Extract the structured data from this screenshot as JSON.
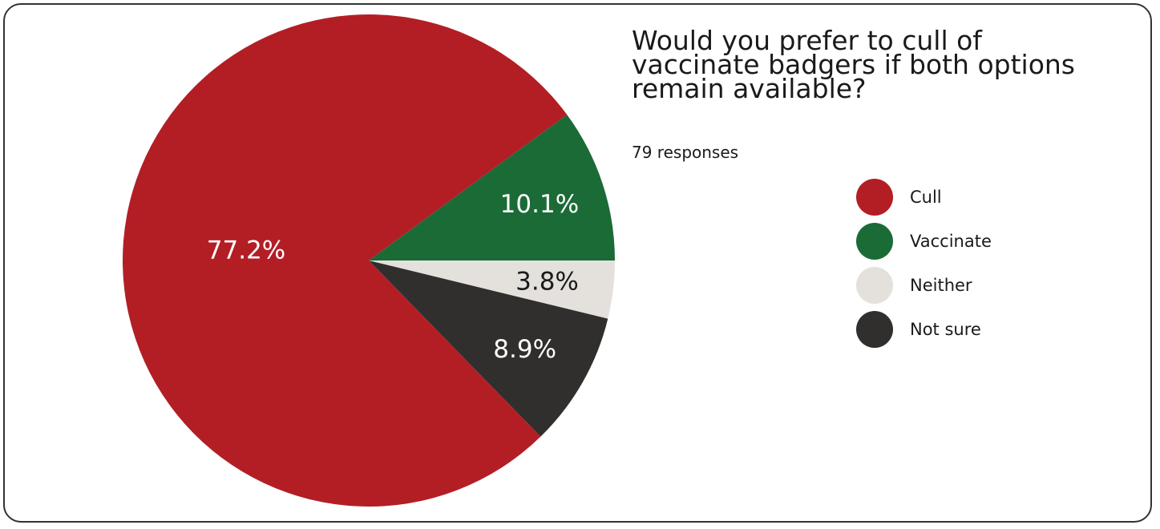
{
  "title": "Would you prefer to cull of vaccinate badgers if both options remain available?",
  "subtitle": "79 responses",
  "chart_data": {
    "type": "pie",
    "slices": [
      {
        "label": "Cull",
        "value": 77.2,
        "display": "77.2%",
        "color": "#b31e25",
        "label_color": "#ffffff"
      },
      {
        "label": "Vaccinate",
        "value": 10.1,
        "display": "10.1%",
        "color": "#1b6b37",
        "label_color": "#ffffff"
      },
      {
        "label": "Neither",
        "value": 3.8,
        "display": "3.8%",
        "color": "#e4e1dd",
        "label_color": "#1a1a1a"
      },
      {
        "label": "Not sure",
        "value": 8.9,
        "display": "8.9%",
        "color": "#302f2d",
        "label_color": "#ffffff"
      }
    ],
    "legend_position": "right"
  }
}
